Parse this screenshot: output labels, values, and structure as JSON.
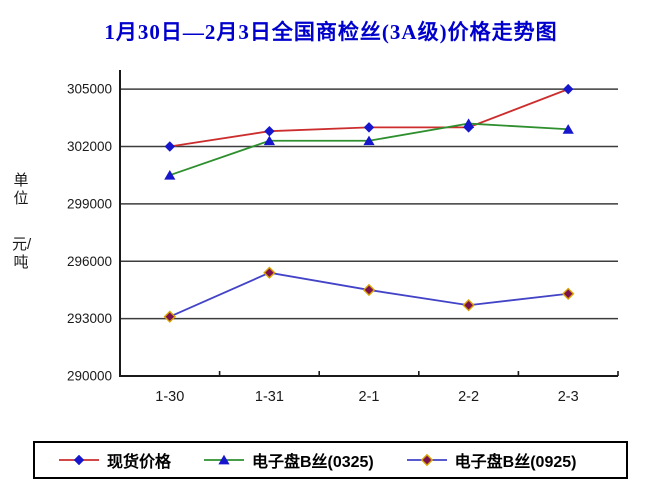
{
  "title": "1月30日—2月3日全国商检丝(3A级)价格走势图",
  "unit_label": {
    "top": "单位",
    "bottom": "元/吨"
  },
  "colors": {
    "title": "#0000cc",
    "grid": "#3c3c3c",
    "axis": "#1a1a1a",
    "text": "#1a1a1a",
    "legend_border": "#000000"
  },
  "chart_data": {
    "type": "line",
    "title": "1月30日—2月3日全国商检丝(3A级)价格走势图",
    "ylabel": "单位 元/吨",
    "categories": [
      "1-30",
      "1-31",
      "2-1",
      "2-2",
      "2-3"
    ],
    "yticks": [
      290000,
      293000,
      296000,
      299000,
      302000,
      305000
    ],
    "ylim": [
      290000,
      306000
    ],
    "grid": "horizontal",
    "legend_position": "bottom",
    "series": [
      {
        "name": "现货价格",
        "values": [
          302000,
          302800,
          303000,
          303000,
          305000
        ],
        "line_color": "#cc2e2e",
        "marker": "diamond",
        "marker_color": "#1616cc"
      },
      {
        "name": "电子盘B丝(0325)",
        "values": [
          300500,
          302300,
          302300,
          303200,
          302900
        ],
        "line_color": "#2e8f2e",
        "marker": "triangle",
        "marker_color": "#1616cc"
      },
      {
        "name": "电子盘B丝(0925)",
        "values": [
          293100,
          295400,
          294500,
          293700,
          294300
        ],
        "line_color": "#4343c8",
        "marker": "diamond",
        "marker_color": "#7a1050",
        "marker_edge_color": "#d9a300"
      }
    ]
  }
}
